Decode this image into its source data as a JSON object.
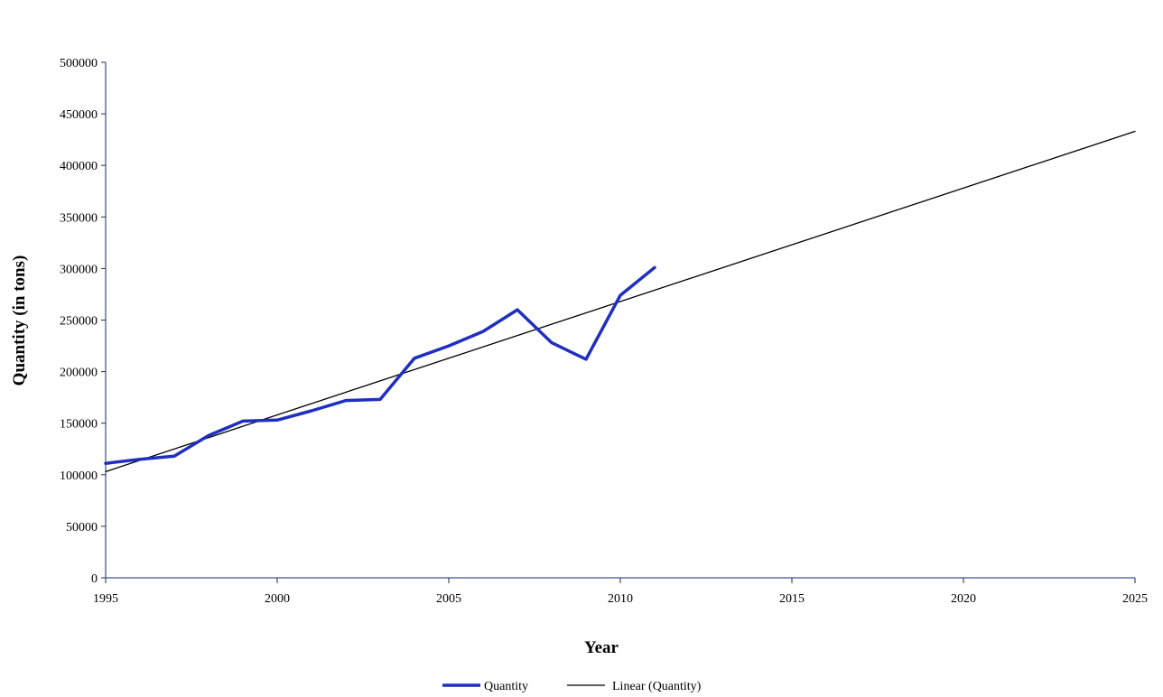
{
  "chart_data": {
    "type": "line",
    "title": "",
    "xlabel": "Year",
    "ylabel": "Quantity (in tons)",
    "xlim": [
      1995,
      2025
    ],
    "ylim": [
      0,
      500000
    ],
    "x_ticks": [
      1995,
      2000,
      2005,
      2010,
      2015,
      2020,
      2025
    ],
    "y_ticks": [
      0,
      50000,
      100000,
      150000,
      200000,
      250000,
      300000,
      350000,
      400000,
      450000,
      500000
    ],
    "grid": false,
    "legend_position": "bottom-center",
    "series": [
      {
        "name": "Quantity",
        "color": "#1f2fbf",
        "x": [
          1995,
          1996,
          1997,
          1998,
          1999,
          2000,
          2001,
          2002,
          2003,
          2004,
          2005,
          2006,
          2007,
          2008,
          2009,
          2010,
          2011
        ],
        "values": [
          111000,
          115000,
          118000,
          138000,
          152000,
          153000,
          162000,
          172000,
          173000,
          213000,
          225000,
          239000,
          260000,
          228000,
          212000,
          274000,
          301000
        ]
      },
      {
        "name": "Linear (Quantity)",
        "color": "#000000",
        "x": [
          1995,
          2025
        ],
        "values": [
          103000,
          433000
        ]
      }
    ]
  }
}
